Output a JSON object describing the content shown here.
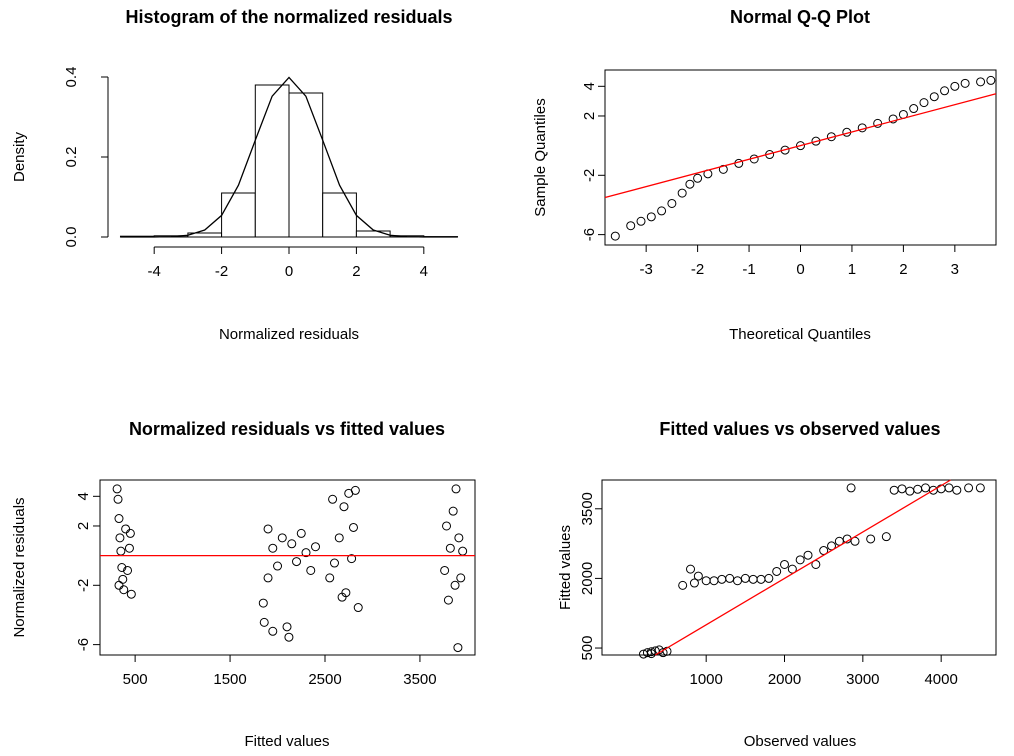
{
  "chart_data": [
    {
      "type": "histogram",
      "title": "Histogram of the normalized residuals",
      "xlabel": "Normalized residuals",
      "ylabel": "Density",
      "bins": [
        -5,
        -4,
        -3,
        -2,
        -1,
        0,
        1,
        2,
        3,
        4,
        5
      ],
      "values": [
        0.002,
        0.003,
        0.01,
        0.11,
        0.38,
        0.36,
        0.11,
        0.015,
        0.003,
        0.001
      ],
      "color": "#ffffff",
      "edge_color": "#000000",
      "curve": {
        "color": "#000000",
        "x": [
          -5,
          -4.5,
          -4,
          -3.5,
          -3,
          -2.5,
          -2,
          -1.5,
          -1,
          -0.5,
          0,
          0.5,
          1,
          1.5,
          2,
          2.5,
          3,
          3.5,
          4,
          4.5,
          5
        ],
        "values": [
          0,
          0,
          0.0001,
          0.0009,
          0.0044,
          0.0175,
          0.054,
          0.1295,
          0.242,
          0.3521,
          0.3989,
          0.3521,
          0.242,
          0.1295,
          0.054,
          0.0175,
          0.0044,
          0.0009,
          0.0001,
          0,
          0
        ]
      },
      "xlim": [
        -5.4,
        5.4
      ],
      "xticks": [
        -4,
        -2,
        0,
        2,
        4
      ],
      "ylim": [
        0,
        0.4
      ],
      "yticks": [
        {
          "value": 0,
          "label": "0.0"
        },
        {
          "value": 0.2,
          "label": "0.2"
        },
        {
          "value": 0.4,
          "label": "0.4"
        }
      ]
    },
    {
      "type": "scatter",
      "title": "Normal Q-Q Plot",
      "xlabel": "Theoretical Quantiles",
      "ylabel": "Sample Quantiles",
      "color": "#000000",
      "x": [
        -3.6,
        -3.3,
        -3.1,
        -2.9,
        -2.7,
        -2.5,
        -2.3,
        -2.15,
        -2.0,
        -1.8,
        -1.5,
        -1.2,
        -0.9,
        -0.6,
        -0.3,
        0,
        0.3,
        0.6,
        0.9,
        1.2,
        1.5,
        1.8,
        2.0,
        2.2,
        2.4,
        2.6,
        2.8,
        3.0,
        3.2,
        3.5,
        3.7
      ],
      "values": [
        -6.1,
        -5.4,
        -5.1,
        -4.8,
        -4.4,
        -3.9,
        -3.2,
        -2.6,
        -2.2,
        -1.9,
        -1.6,
        -1.2,
        -0.9,
        -0.6,
        -0.3,
        0,
        0.3,
        0.6,
        0.9,
        1.2,
        1.5,
        1.8,
        2.1,
        2.5,
        2.9,
        3.3,
        3.7,
        4.0,
        4.2,
        4.3,
        4.4
      ],
      "reference_line": {
        "color": "#ff0000",
        "x": [
          -3.8,
          3.8
        ],
        "values": [
          -3.5,
          3.5
        ]
      },
      "xlim": [
        -3.8,
        3.8
      ],
      "xticks": [
        -3,
        -2,
        -1,
        0,
        1,
        2,
        3
      ],
      "ylim": [
        -6.7,
        5.1
      ],
      "yticks": [
        -6,
        -2,
        2,
        4
      ]
    },
    {
      "type": "scatter",
      "title": "Normalized residuals vs fitted values",
      "xlabel": "Fitted values",
      "ylabel": "Normalized residuals",
      "color": "#000000",
      "x": [
        310,
        320,
        330,
        340,
        350,
        360,
        370,
        380,
        400,
        420,
        440,
        460,
        330,
        450,
        1850,
        1860,
        1900,
        1900,
        1950,
        1950,
        2000,
        2050,
        2100,
        2120,
        2150,
        2200,
        2250,
        2300,
        2350,
        2400,
        2550,
        2580,
        2600,
        2650,
        2700,
        2720,
        2750,
        2780,
        2800,
        2820,
        2850,
        2680,
        3760,
        3780,
        3800,
        3820,
        3850,
        3870,
        3880,
        3900,
        3910,
        3930,
        3950
      ],
      "values": [
        4.5,
        3.8,
        2.5,
        1.2,
        0.3,
        -0.8,
        -1.6,
        -2.3,
        1.8,
        -1.0,
        0.5,
        -2.6,
        -2.0,
        1.5,
        -3.2,
        -4.5,
        -1.5,
        1.8,
        0.5,
        -5.1,
        -0.7,
        1.2,
        -4.8,
        -5.5,
        0.8,
        -0.4,
        1.5,
        0.2,
        -1.0,
        0.6,
        -1.5,
        3.8,
        -0.5,
        1.2,
        3.3,
        -2.5,
        4.2,
        -0.2,
        1.9,
        4.4,
        -3.5,
        -2.8,
        -1.0,
        2.0,
        -3.0,
        0.5,
        3.0,
        -2.0,
        4.5,
        -6.2,
        1.2,
        -1.5,
        0.3
      ],
      "reference_line": {
        "color": "#ff0000",
        "x": [
          130,
          4080
        ],
        "values": [
          0,
          0
        ]
      },
      "xlim": [
        130,
        4080
      ],
      "xticks": [
        500,
        1500,
        2500,
        3500
      ],
      "ylim": [
        -6.7,
        5.1
      ],
      "yticks": [
        -6,
        -2,
        2,
        4
      ]
    },
    {
      "type": "scatter",
      "title": "Fitted values vs observed values",
      "xlabel": "Observed values",
      "ylabel": "Fitted values",
      "color": "#000000",
      "x": [
        200,
        250,
        300,
        350,
        400,
        450,
        500,
        300,
        700,
        800,
        850,
        900,
        1000,
        1100,
        1200,
        1300,
        1400,
        1500,
        1600,
        1700,
        1800,
        1900,
        2000,
        2100,
        2200,
        2300,
        2400,
        2500,
        2600,
        2700,
        2800,
        2900,
        3100,
        3300,
        2850,
        3400,
        3500,
        3600,
        3700,
        3800,
        3900,
        4000,
        4100,
        4200,
        4350,
        4500
      ],
      "values": [
        370,
        400,
        420,
        440,
        460,
        400,
        430,
        380,
        1850,
        2200,
        1900,
        2050,
        1950,
        1950,
        1980,
        2000,
        1950,
        2000,
        1980,
        1980,
        2000,
        2150,
        2300,
        2200,
        2400,
        2500,
        2300,
        2600,
        2700,
        2800,
        2850,
        2800,
        2850,
        2900,
        3950,
        3900,
        3930,
        3880,
        3920,
        3950,
        3900,
        3930,
        3950,
        3900,
        3950,
        3950
      ],
      "reference_line": {
        "color": "#ff0000",
        "x": [
          350,
          4120
        ],
        "values": [
          350,
          4120
        ]
      },
      "xlim": [
        -330,
        4700
      ],
      "xticks": [
        1000,
        2000,
        3000,
        4000
      ],
      "ylim": [
        350,
        4120
      ],
      "yticks": [
        500,
        2000,
        3500
      ]
    }
  ]
}
